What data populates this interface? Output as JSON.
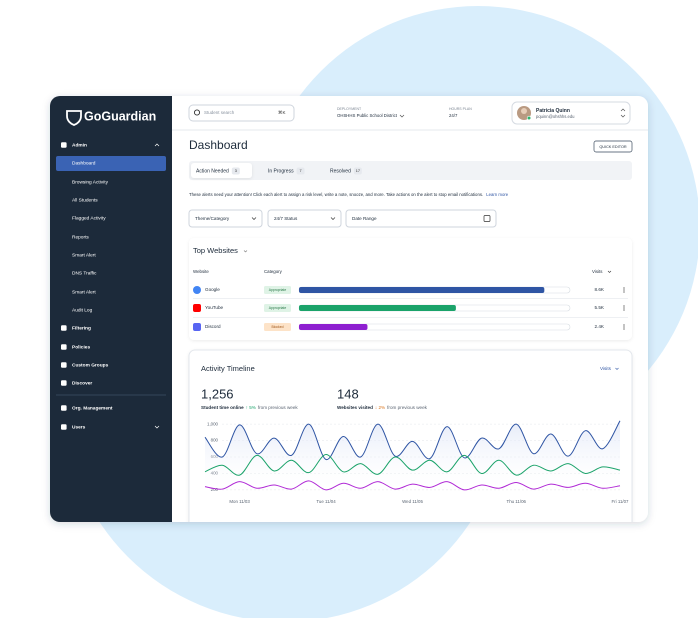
{
  "sidebar": {
    "logo": "GoGuardian",
    "nav": [
      "Admin",
      "Dashboard",
      "Browsing Activity",
      "All Students",
      "Flagged Activity",
      "Reports",
      "Smart Alert",
      "DNS Traffic",
      "Smart Alert",
      "Audit Log",
      "Filtering",
      "Policies",
      "Custom Groups",
      "Discover",
      "Org. Management",
      "Users"
    ]
  },
  "topbar": {
    "search_placeholder": "Student search",
    "shortcut": "⌘K",
    "deployment_label": "DEPLOYMENT",
    "deployment": "OHSHHS Public School District",
    "plan_label": "HOURS PLAN",
    "plan": "24/7",
    "user_name": "Patricia Quinn",
    "user_email": "pquinn@ohshhs.edu"
  },
  "header": {
    "title": "Dashboard",
    "button": "QUICK EDITOR"
  },
  "tabs": [
    {
      "label": "Action Needed",
      "count": "3"
    },
    {
      "label": "In Progress",
      "count": "7"
    },
    {
      "label": "Resolved",
      "count": "17"
    }
  ],
  "notice": {
    "text": "These alerts need your attention! Click each alert to assign a risk level, write a note, snooze, and more. Take actions on the alert to stop email notifications.",
    "link": "Learn more"
  },
  "filters": [
    "Theme/Category",
    "24/7 Status",
    "Date Range"
  ],
  "activity": {
    "menu": "Visits",
    "stats": [
      {
        "value": "1,256",
        "label": "Student time online",
        "change": "↑ 5%",
        "suffix": "from previous week"
      },
      {
        "value": "148",
        "label": "Websites visited",
        "change": "↓ 2%",
        "suffix": "from previous week"
      }
    ]
  },
  "chart_data": [
    {
      "type": "bar",
      "title": "Top Websites",
      "columns": [
        "Website",
        "Category",
        "Visits"
      ],
      "categories": [
        "Google",
        "YouTube",
        "Discord"
      ],
      "category_labels": [
        "Appropriate",
        "Appropriate",
        "Blocked"
      ],
      "values": [
        8600,
        5500,
        2400
      ],
      "value_labels": [
        "8.6K",
        "5.5K",
        "2.4K"
      ],
      "colors": [
        "#2f55a4",
        "#1ba36a",
        "#8e1fd0"
      ],
      "xlim": [
        0,
        9500
      ]
    },
    {
      "type": "line",
      "title": "Activity Timeline",
      "categories": [
        null,
        null,
        "Mon 11/03",
        null,
        null,
        null,
        null,
        "Tue 11/04",
        null,
        null,
        null,
        null,
        "Wed 11/05",
        null,
        null,
        null,
        null,
        null,
        "Thu 11/06",
        null,
        null,
        null,
        null,
        null,
        "Fri 11/07"
      ],
      "series": [
        {
          "color": "#2f55a4",
          "values": [
            840,
            600,
            990,
            640,
            830,
            620,
            1000,
            570,
            850,
            600,
            1000,
            610,
            790,
            580,
            970,
            590,
            830,
            700,
            1000,
            640,
            880,
            610,
            920,
            700,
            1040
          ]
        },
        {
          "color": "#1ba36a",
          "values": [
            420,
            500,
            380,
            620,
            430,
            560,
            410,
            630,
            420,
            520,
            390,
            600,
            440,
            560,
            420,
            620,
            400,
            560,
            380,
            500,
            430,
            520,
            400,
            480,
            440
          ]
        },
        {
          "color": "#b02ad6",
          "values": [
            240,
            210,
            300,
            220,
            260,
            210,
            310,
            200,
            280,
            220,
            300,
            210,
            270,
            230,
            300,
            200,
            260,
            220,
            290,
            210,
            270,
            230,
            280,
            220,
            250
          ]
        }
      ],
      "ylim": [
        150,
        1050
      ],
      "yticks": [
        200,
        400,
        600,
        800,
        {
          "value": 1000,
          "label": "1,000"
        }
      ],
      "grid": true
    }
  ]
}
